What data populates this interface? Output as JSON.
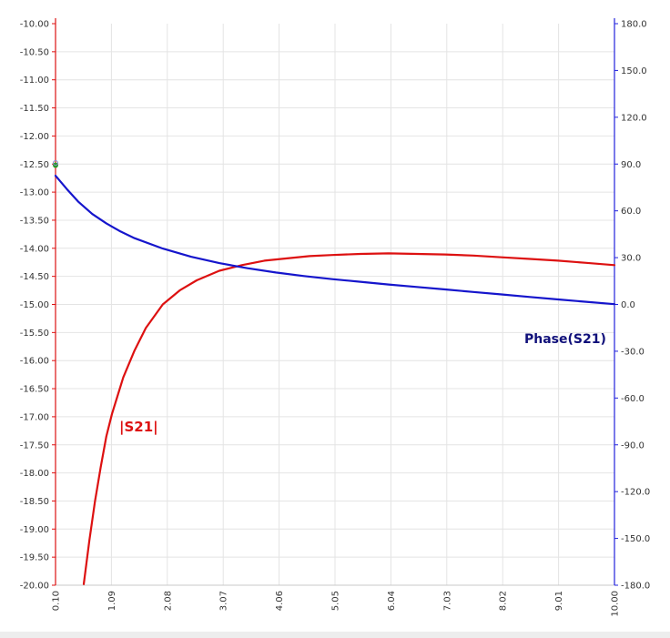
{
  "chart_data": {
    "type": "line",
    "title": "",
    "xlabel": "",
    "ylabel": "",
    "y2label": "",
    "xlim": [
      0.1,
      10.0
    ],
    "ylim": [
      -20.0,
      -10.0
    ],
    "y2lim": [
      -180.0,
      180.0
    ],
    "grid": true,
    "x_ticks": [
      "0.10",
      "1.09",
      "2.08",
      "3.07",
      "4.06",
      "5.05",
      "6.04",
      "7.03",
      "8.02",
      "9.01",
      "10.00"
    ],
    "y_ticks": [
      "-10.00",
      "-10.50",
      "-11.00",
      "-11.50",
      "-12.00",
      "-12.50",
      "-13.00",
      "-13.50",
      "-14.00",
      "-14.50",
      "-15.00",
      "-15.50",
      "-16.00",
      "-16.50",
      "-17.00",
      "-17.50",
      "-18.00",
      "-18.50",
      "-19.00",
      "-19.50",
      "-20.00"
    ],
    "y2_ticks": [
      "180.0",
      "150.0",
      "120.0",
      "90.0",
      "60.0",
      "30.0",
      "0.0",
      "-30.0",
      "-60.0",
      "-90.0",
      "-120.0",
      "-150.0",
      "-180.0"
    ],
    "series": [
      {
        "name": "|S21|",
        "axis": "left",
        "color": "#dd1111",
        "x": [
          0.6,
          0.7,
          0.8,
          0.9,
          1.0,
          1.1,
          1.3,
          1.5,
          1.7,
          2.0,
          2.3,
          2.6,
          3.0,
          3.4,
          3.8,
          4.2,
          4.6,
          5.0,
          5.5,
          6.0,
          6.5,
          7.0,
          7.5,
          8.0,
          8.5,
          9.0,
          9.5,
          10.0
        ],
        "values": [
          -19.98,
          -19.2,
          -18.5,
          -17.9,
          -17.35,
          -16.95,
          -16.3,
          -15.82,
          -15.42,
          -15.0,
          -14.75,
          -14.57,
          -14.4,
          -14.3,
          -14.22,
          -14.18,
          -14.14,
          -14.12,
          -14.1,
          -14.09,
          -14.1,
          -14.11,
          -14.13,
          -14.16,
          -14.19,
          -14.22,
          -14.26,
          -14.3
        ]
      },
      {
        "name": "Phase(S21)",
        "axis": "right",
        "color": "#1515cc",
        "x": [
          0.1,
          0.3,
          0.5,
          0.75,
          1.0,
          1.25,
          1.5,
          2.0,
          2.5,
          3.0,
          3.5,
          4.0,
          4.5,
          5.0,
          5.5,
          6.0,
          6.5,
          7.0,
          7.5,
          8.0,
          8.5,
          9.0,
          9.5,
          10.0
        ],
        "values": [
          82.5,
          74,
          66,
          58,
          52,
          46.8,
          42.5,
          35.8,
          30.6,
          26.5,
          23.2,
          20.5,
          18.2,
          16.2,
          14.5,
          12.8,
          11.2,
          9.6,
          8.0,
          6.4,
          4.8,
          3.2,
          1.7,
          0.2
        ]
      }
    ],
    "annotations": [
      {
        "text": "|S21|",
        "color": "#dd1111"
      },
      {
        "text": "Phase(S21)",
        "color": "#10107a"
      }
    ]
  }
}
